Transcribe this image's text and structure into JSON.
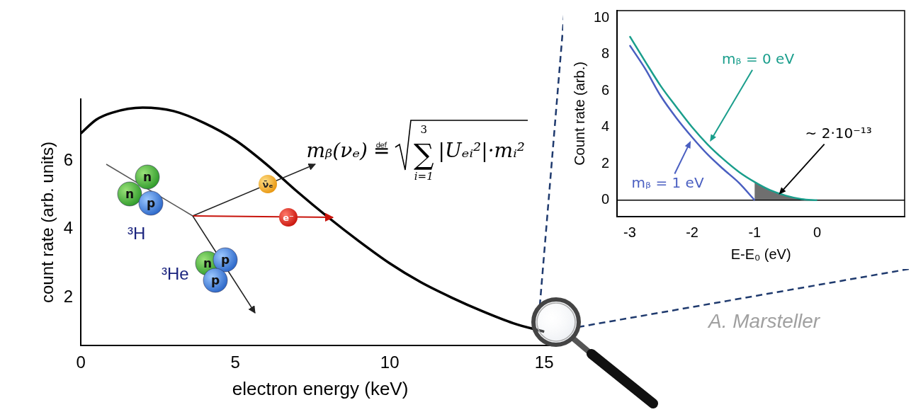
{
  "chart_data": [
    {
      "type": "line",
      "x_label": "electron energy (keV)",
      "y_label": "count rate (arb. units)",
      "x": [
        0,
        0.5,
        1,
        2,
        3,
        4,
        5,
        6,
        7,
        8,
        9,
        10,
        11,
        12,
        13,
        14,
        15
      ],
      "values": [
        6.8,
        7.2,
        7.4,
        7.55,
        7.45,
        7.1,
        6.6,
        5.9,
        5.1,
        4.35,
        3.65,
        3.0,
        2.45,
        2.0,
        1.6,
        1.25,
        1.0
      ],
      "color": "#000000",
      "xlim": [
        0,
        15.5
      ],
      "xticks": [
        0,
        5,
        10,
        15
      ],
      "ylim": [
        0.6,
        7.8
      ],
      "yticks": [
        2,
        4,
        6
      ],
      "grid": false
    },
    {
      "type": "line",
      "x_label": "E-E₀ (eV)",
      "y_label": "Count rate (arb.)",
      "series": [
        {
          "name": "mᵦ = 0 eV",
          "color": "#1a9e8c",
          "x": [
            -3,
            -2.75,
            -2.5,
            -2.25,
            -2,
            -1.75,
            -1.5,
            -1.25,
            -1,
            -0.75,
            -0.5,
            -0.25,
            0
          ],
          "values": [
            9.0,
            7.6,
            6.25,
            5.1,
            4.0,
            3.05,
            2.25,
            1.55,
            1.0,
            0.55,
            0.25,
            0.06,
            0
          ]
        },
        {
          "name": "mᵦ = 1 eV",
          "color": "#4a5fc1",
          "x": [
            -3,
            -2.75,
            -2.5,
            -2.25,
            -2,
            -1.75,
            -1.5,
            -1.25,
            -1
          ],
          "values": [
            8.5,
            7.2,
            5.7,
            4.5,
            3.45,
            2.5,
            1.7,
            0.95,
            0
          ]
        }
      ],
      "xlim": [
        -3.2,
        1.4
      ],
      "xticks": [
        -3,
        -2,
        -1,
        0
      ],
      "ylim": [
        -0.9,
        10.4
      ],
      "yticks": [
        0,
        2,
        4,
        6,
        8,
        10
      ],
      "annotations": [
        "~ 2·10⁻¹³"
      ]
    }
  ],
  "formula": {
    "lhs": "mᵦ(νₑ)",
    "relation": "≝",
    "operator": "∑",
    "sum_lower": "i=1",
    "sum_upper": "3",
    "term": "|Uₑᵢ²|·mᵢ²"
  },
  "decay": {
    "parent": {
      "label": "³H",
      "nucleons": [
        "n",
        "n",
        "p"
      ]
    },
    "daughter": {
      "label": "³He",
      "nucleons": [
        "n",
        "p",
        "p"
      ]
    },
    "particles": [
      "ν̄ₑ",
      "e⁻"
    ]
  },
  "credit": "A. Marsteller"
}
